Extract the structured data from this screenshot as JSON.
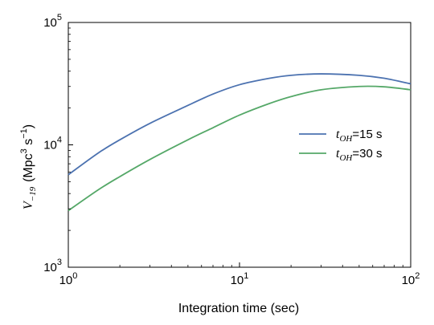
{
  "chart_data": {
    "type": "line",
    "title": "",
    "xlabel": "Integration time (sec)",
    "ylabel": {
      "symbol": "V",
      "subscript": "−19",
      "units_prefix": "(Mpc",
      "units_exp1": "3",
      "units_mid": " s",
      "units_exp2": "−1",
      "units_suffix": ")"
    },
    "xscale": "log",
    "yscale": "log",
    "xlim": [
      1,
      100
    ],
    "ylim": [
      1000,
      100000
    ],
    "grid": false,
    "legend_position": "right",
    "x_ticks": [
      {
        "value": 1,
        "base": "10",
        "exp": "0"
      },
      {
        "value": 10,
        "base": "10",
        "exp": "1"
      },
      {
        "value": 100,
        "base": "10",
        "exp": "2"
      }
    ],
    "y_ticks": [
      {
        "value": 1000,
        "base": "10",
        "exp": "3"
      },
      {
        "value": 10000,
        "base": "10",
        "exp": "4"
      },
      {
        "value": 100000,
        "base": "10",
        "exp": "5"
      }
    ],
    "series": [
      {
        "label_symbol": "t",
        "label_sub": "OH",
        "label_rest": "=15 s",
        "color": "#4c72b0",
        "x": [
          1,
          1.5,
          2,
          3,
          5,
          7,
          10,
          15,
          20,
          30,
          50,
          70,
          100
        ],
        "y": [
          5700,
          8600,
          11000,
          15000,
          21000,
          26000,
          31000,
          35000,
          37000,
          38000,
          37000,
          35000,
          31500
        ]
      },
      {
        "label_symbol": "t",
        "label_sub": "OH",
        "label_rest": "=30 s",
        "color": "#55a868",
        "x": [
          1,
          1.5,
          2,
          3,
          5,
          7,
          10,
          15,
          20,
          30,
          50,
          70,
          100
        ],
        "y": [
          2900,
          4300,
          5500,
          7600,
          11000,
          13800,
          17500,
          21800,
          24800,
          28200,
          30000,
          29800,
          28200
        ]
      }
    ]
  }
}
